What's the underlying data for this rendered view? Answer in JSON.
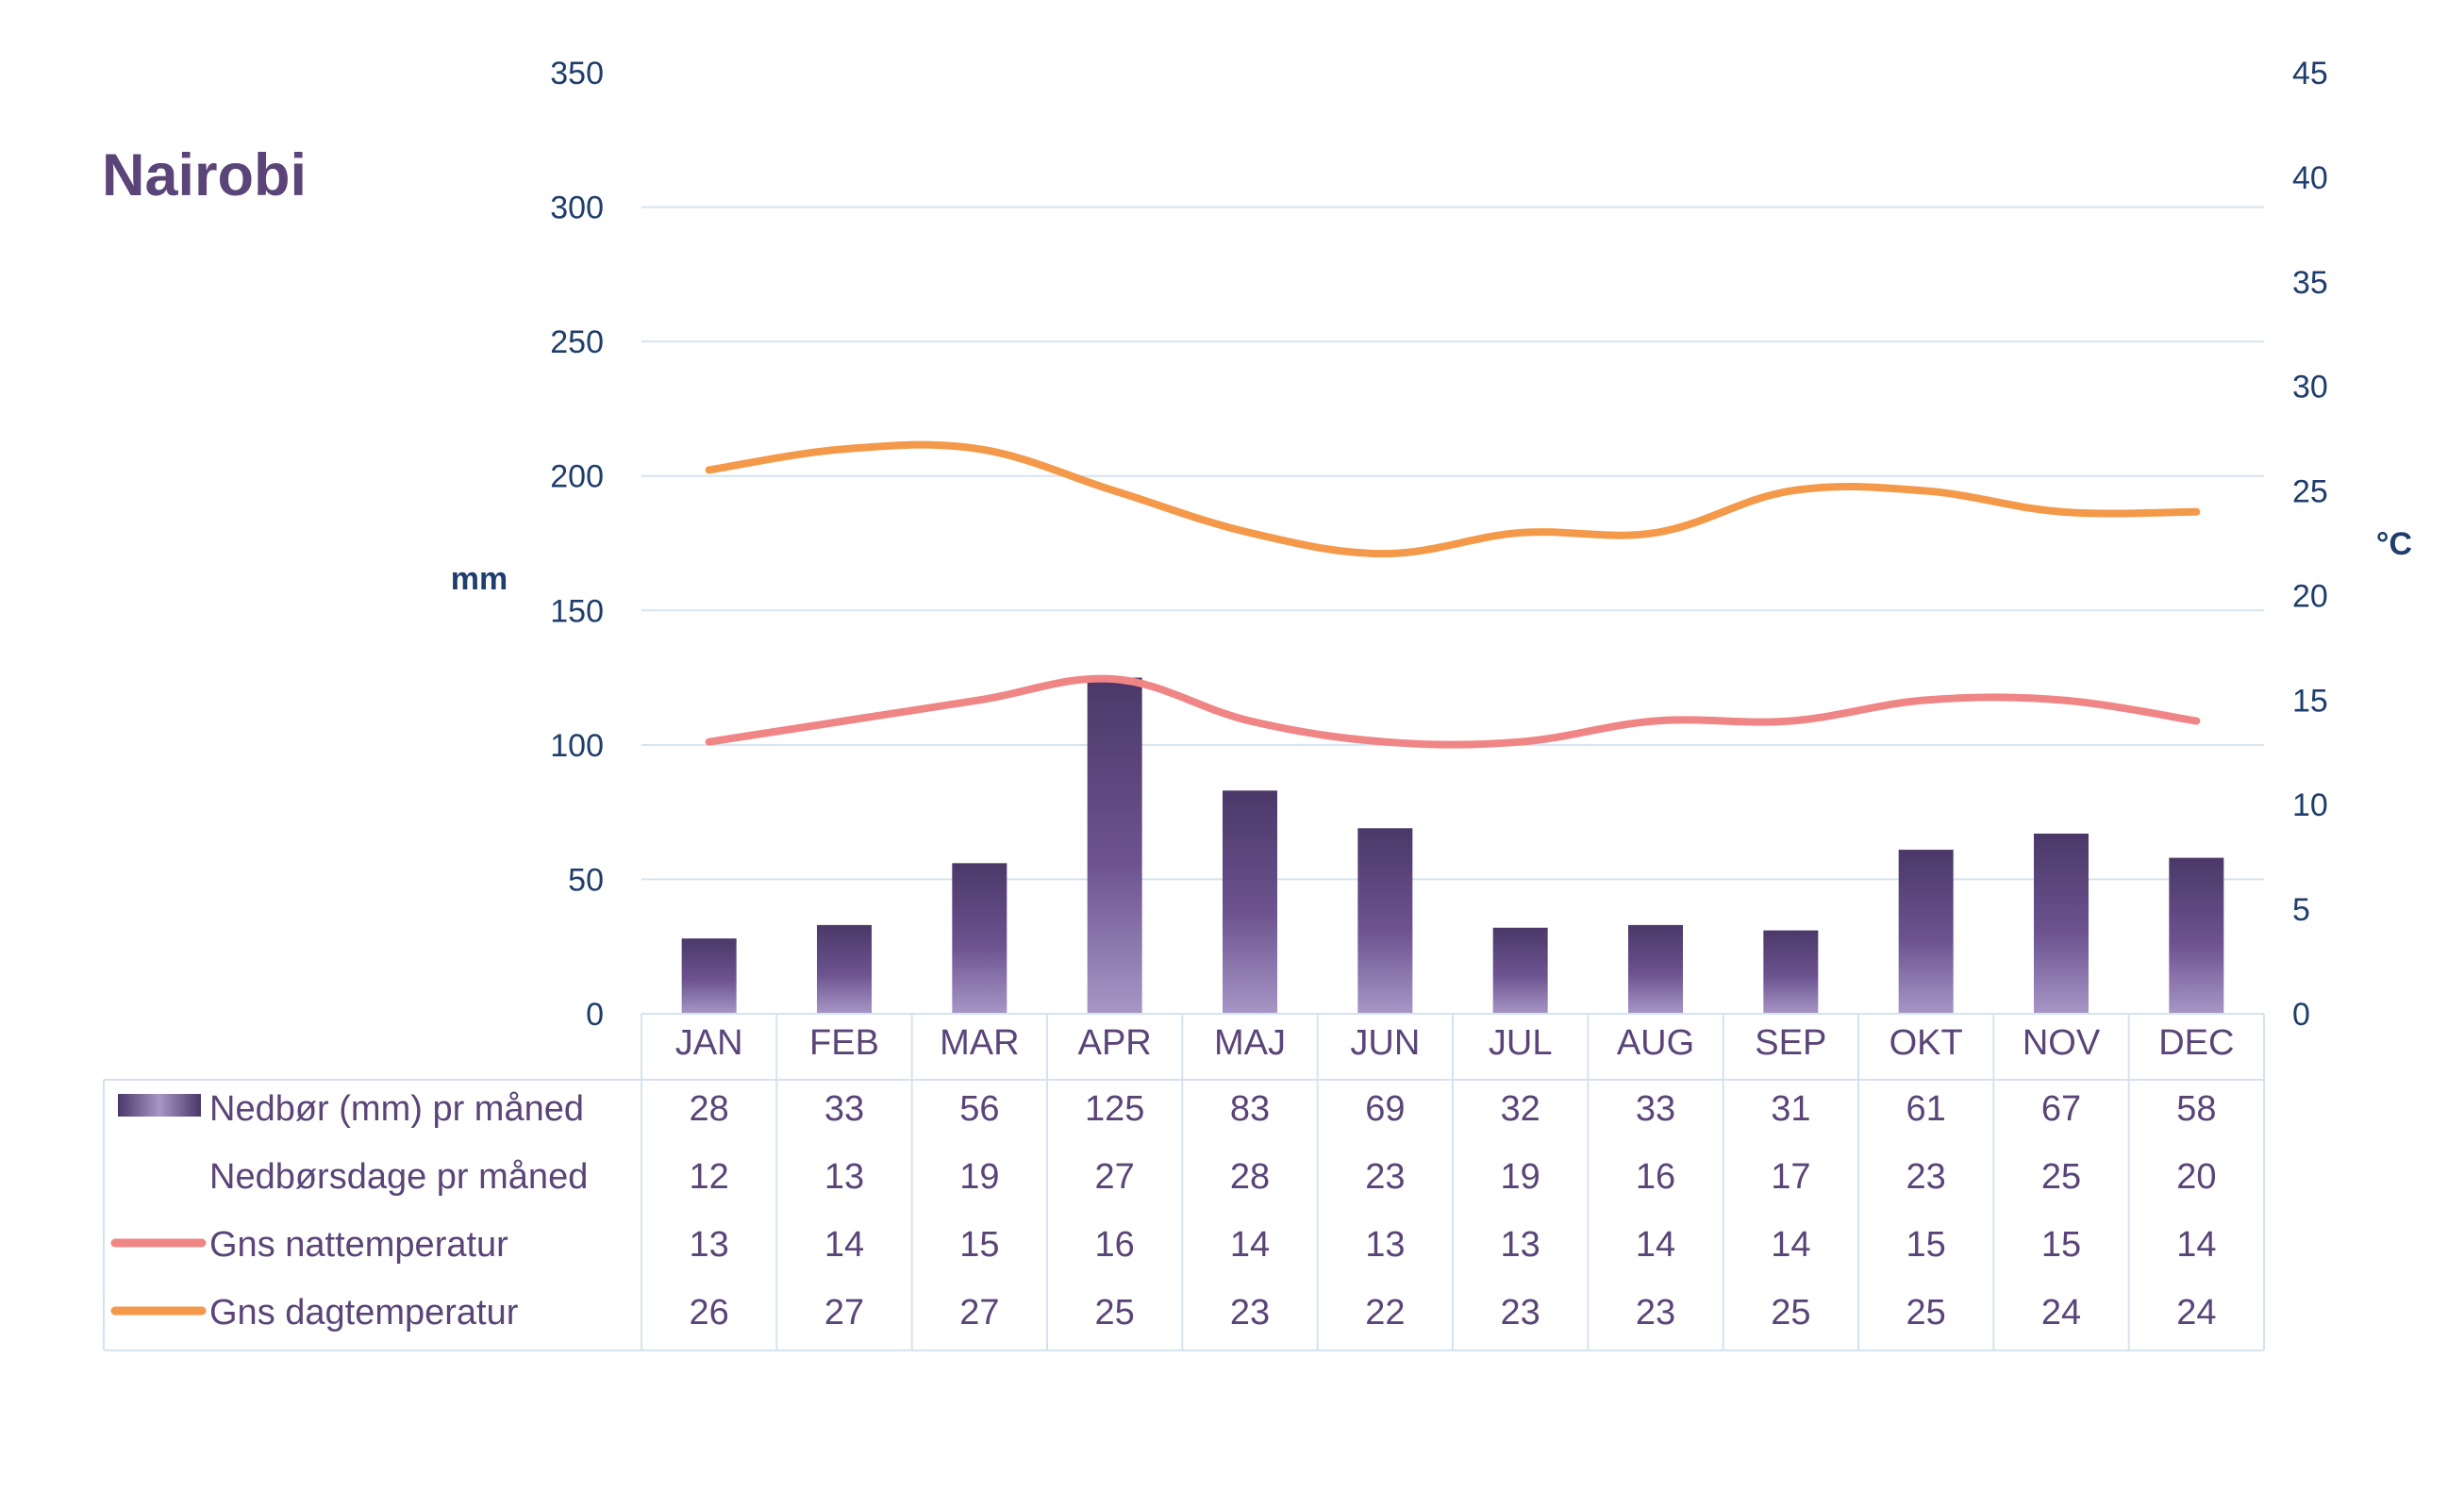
{
  "chart_data": {
    "type": "bar",
    "title": "Nairobi",
    "categories": [
      "JAN",
      "FEB",
      "MAR",
      "APR",
      "MAJ",
      "JUN",
      "JUL",
      "AUG",
      "SEP",
      "OKT",
      "NOV",
      "DEC"
    ],
    "left_axis": {
      "label": "mm",
      "ticks": [
        "0",
        "50",
        "100",
        "150",
        "200",
        "250",
        "300",
        "350"
      ],
      "ylim": [
        0,
        350
      ]
    },
    "right_axis": {
      "label": "°C",
      "ticks": [
        "0",
        "5",
        "10",
        "15",
        "20",
        "25",
        "30",
        "35",
        "40",
        "45"
      ],
      "ylim": [
        0,
        45
      ]
    },
    "series": [
      {
        "name": "Nedbør (mm) pr måned",
        "type": "bar",
        "axis": "left",
        "values": [
          28,
          33,
          56,
          125,
          83,
          69,
          32,
          33,
          31,
          61,
          67,
          58
        ],
        "color": "#5b4577"
      },
      {
        "name": "Nedbørsdage pr måned",
        "type": "table-only",
        "values": [
          12,
          13,
          19,
          27,
          28,
          23,
          19,
          16,
          17,
          23,
          25,
          20
        ]
      },
      {
        "name": "Gns nattemperatur",
        "type": "line",
        "axis": "right",
        "values": [
          13,
          14,
          15,
          16,
          14,
          13,
          13,
          14,
          14,
          15,
          15,
          14
        ],
        "color": "#f08585"
      },
      {
        "name": "Gns dagtemperatur",
        "type": "line",
        "axis": "right",
        "values": [
          26,
          27,
          27,
          25,
          23,
          22,
          23,
          23,
          25,
          25,
          24,
          24
        ],
        "color": "#f4994a"
      }
    ],
    "grid": true,
    "legend": "data-table-below",
    "colors": {
      "text": "#5a4478",
      "axis_text": "#1f3e6b",
      "grid": "#d5e3f0",
      "table_border": "#d5e3f0"
    }
  }
}
